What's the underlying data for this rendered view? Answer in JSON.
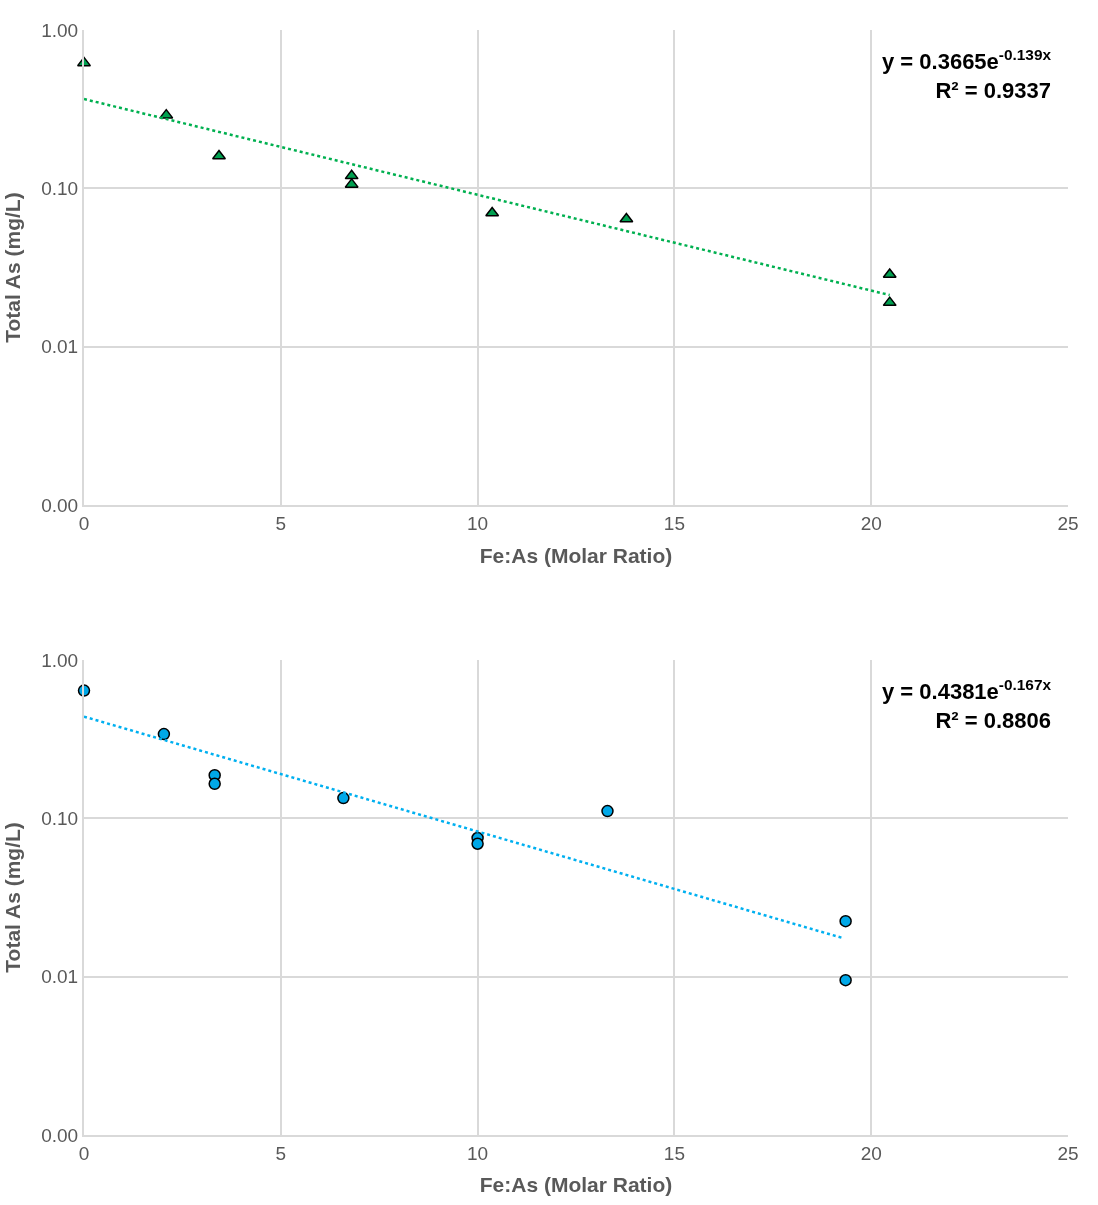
{
  "chart_data": [
    {
      "type": "scatter",
      "xlabel": "Fe:As (Molar Ratio)",
      "ylabel": "Total As (mg/L)",
      "log": "y",
      "grid": true,
      "marker": "triangle",
      "xlim": [
        0,
        25
      ],
      "xticks": [
        0,
        5,
        10,
        15,
        20,
        25
      ],
      "ylim": [
        0.001,
        1
      ],
      "yticks": [
        {
          "value": 0.001,
          "label": "0.00"
        },
        {
          "value": 0.01,
          "label": "0.01"
        },
        {
          "value": 0.1,
          "label": "0.10"
        },
        {
          "value": 1,
          "label": "1.00"
        }
      ],
      "annotations": [
        "y = 0.3665e$^{-0.139x}$",
        "R² = 0.9337"
      ],
      "series": [
        {
          "color": "#00a050",
          "x": [
            0,
            2.09,
            3.43,
            6.8,
            6.8,
            10.37,
            13.78,
            20.47,
            20.47
          ],
          "values": [
            0.62,
            0.29,
            0.16,
            0.12,
            0.106,
            0.07,
            0.064,
            0.0286,
            0.019
          ]
        },
        {
          "type": "line",
          "color": "#00b050",
          "line_style": "dotted",
          "marker": "none",
          "x": [
            0,
            20.47
          ],
          "values": [
            0.3665,
            0.0212
          ]
        }
      ]
    },
    {
      "type": "scatter",
      "xlabel": "Fe:As (Molar Ratio)",
      "ylabel": "Total As (mg/L)",
      "log": "y",
      "grid": true,
      "marker": "circle",
      "xlim": [
        0,
        25
      ],
      "xticks": [
        0,
        5,
        10,
        15,
        20,
        25
      ],
      "ylim": [
        0.001,
        1
      ],
      "yticks": [
        {
          "value": 0.001,
          "label": "0.00"
        },
        {
          "value": 0.01,
          "label": "0.01"
        },
        {
          "value": 0.1,
          "label": "0.10"
        },
        {
          "value": 1,
          "label": "1.00"
        }
      ],
      "annotations": [
        "y = 0.4381e$^{-0.167x}$",
        "R² = 0.8806"
      ],
      "series": [
        {
          "color": "#00a8e8",
          "x": [
            0,
            2.03,
            3.32,
            3.32,
            6.59,
            10.0,
            10.0,
            13.3,
            19.35,
            19.35
          ],
          "values": [
            0.64,
            0.34,
            0.187,
            0.165,
            0.134,
            0.075,
            0.069,
            0.111,
            0.0224,
            0.0095
          ]
        },
        {
          "type": "line",
          "color": "#00b0f0",
          "line_style": "dotted",
          "marker": "none",
          "x": [
            0,
            19.3
          ],
          "values": [
            0.4381,
            0.01745
          ]
        }
      ]
    }
  ]
}
